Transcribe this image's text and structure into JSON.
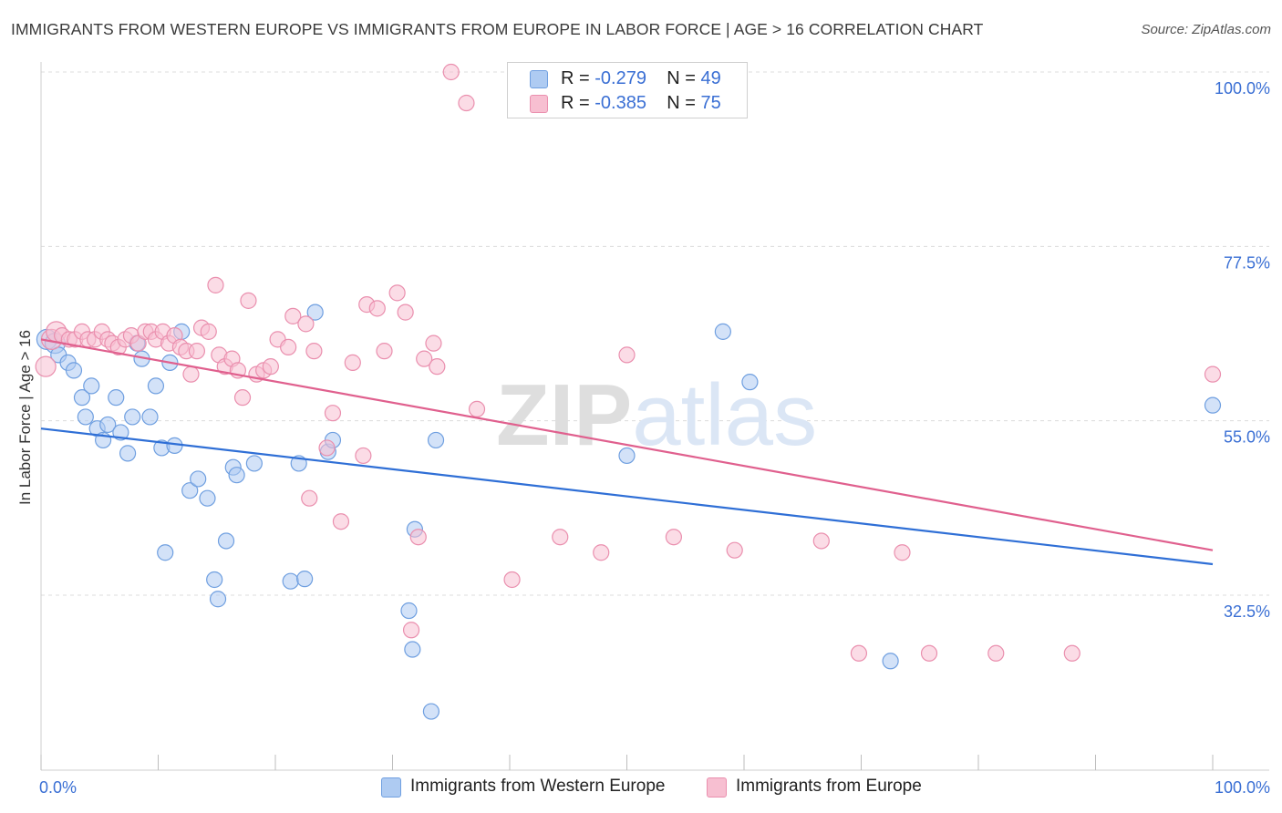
{
  "title": "IMMIGRANTS FROM WESTERN EUROPE VS IMMIGRANTS FROM EUROPE IN LABOR FORCE | AGE > 16 CORRELATION CHART",
  "source": "Source: ZipAtlas.com",
  "watermark": "ZIPatlas",
  "colors": {
    "blue_fill": "#aecbf2",
    "blue_stroke": "#6f9fe0",
    "blue_line": "#2f6fd6",
    "pink_fill": "#f7bfd1",
    "pink_stroke": "#ea8fae",
    "pink_line": "#e0608e",
    "axis_text": "#3a6fd4",
    "grid": "#dcdcdc"
  },
  "legend": {
    "blue": {
      "r_label": "R =",
      "r_value": "-0.279",
      "n_label": "N =",
      "n_value": "49"
    },
    "pink": {
      "r_label": "R =",
      "r_value": "-0.385",
      "n_label": "N =",
      "n_value": "75"
    }
  },
  "chart_data": {
    "type": "scatter",
    "title": "IMMIGRANTS FROM WESTERN EUROPE VS IMMIGRANTS FROM EUROPE IN LABOR FORCE | AGE > 16 CORRELATION CHART",
    "xlabel": "",
    "ylabel": "In Labor Force | Age > 16",
    "xlim": [
      0,
      100
    ],
    "ylim": [
      16,
      103
    ],
    "x_tick_labels": [
      "0.0%",
      "100.0%"
    ],
    "y_ticks": [
      32.5,
      55.0,
      77.5,
      100.0
    ],
    "y_tick_labels": [
      "32.5%",
      "55.0%",
      "77.5%",
      "100.0%"
    ],
    "grid": "horizontal dashed",
    "legend_position": "bottom",
    "series": [
      {
        "name": "Immigrants from Western Europe",
        "color": "#aecbf2",
        "trend": {
          "x": [
            0,
            100
          ],
          "y": [
            54.0,
            36.5
          ]
        },
        "points": [
          [
            0.5,
            65.5
          ],
          [
            1.2,
            65.0
          ],
          [
            1.5,
            63.5
          ],
          [
            2.3,
            62.5
          ],
          [
            2.8,
            61.5
          ],
          [
            3.5,
            58.0
          ],
          [
            3.8,
            55.5
          ],
          [
            4.3,
            59.5
          ],
          [
            4.8,
            54.0
          ],
          [
            5.3,
            52.5
          ],
          [
            5.7,
            54.5
          ],
          [
            6.4,
            58.0
          ],
          [
            6.8,
            53.5
          ],
          [
            7.4,
            50.8
          ],
          [
            7.8,
            55.5
          ],
          [
            8.2,
            65.0
          ],
          [
            8.6,
            63.0
          ],
          [
            9.3,
            55.5
          ],
          [
            9.8,
            59.5
          ],
          [
            10.3,
            51.5
          ],
          [
            10.6,
            38.0
          ],
          [
            11.0,
            62.5
          ],
          [
            11.4,
            51.8
          ],
          [
            12.0,
            66.5
          ],
          [
            12.7,
            46.0
          ],
          [
            13.4,
            47.5
          ],
          [
            14.2,
            45.0
          ],
          [
            14.8,
            34.5
          ],
          [
            15.1,
            32.0
          ],
          [
            15.8,
            39.5
          ],
          [
            16.4,
            49.0
          ],
          [
            16.7,
            48.0
          ],
          [
            18.2,
            49.5
          ],
          [
            21.3,
            34.3
          ],
          [
            22.0,
            49.5
          ],
          [
            22.5,
            34.6
          ],
          [
            23.4,
            69.0
          ],
          [
            24.5,
            51.0
          ],
          [
            24.9,
            52.5
          ],
          [
            31.4,
            30.5
          ],
          [
            31.7,
            25.5
          ],
          [
            31.9,
            41.0
          ],
          [
            33.3,
            17.5
          ],
          [
            33.7,
            52.5
          ],
          [
            50.0,
            50.5
          ],
          [
            58.2,
            66.5
          ],
          [
            60.5,
            60.0
          ],
          [
            72.5,
            24.0
          ],
          [
            100.0,
            57.0
          ]
        ]
      },
      {
        "name": "Immigrants from Europe",
        "color": "#f7bfd1",
        "trend": {
          "x": [
            0,
            100
          ],
          "y": [
            65.5,
            38.3
          ]
        },
        "points": [
          [
            0.4,
            62.0
          ],
          [
            0.9,
            65.5
          ],
          [
            1.3,
            66.5
          ],
          [
            1.8,
            66.0
          ],
          [
            2.4,
            65.5
          ],
          [
            2.9,
            65.5
          ],
          [
            3.5,
            66.5
          ],
          [
            4.0,
            65.5
          ],
          [
            4.6,
            65.5
          ],
          [
            5.2,
            66.5
          ],
          [
            5.7,
            65.5
          ],
          [
            6.1,
            65.0
          ],
          [
            6.6,
            64.5
          ],
          [
            7.2,
            65.5
          ],
          [
            7.7,
            66.0
          ],
          [
            8.3,
            65.0
          ],
          [
            8.9,
            66.5
          ],
          [
            9.4,
            66.5
          ],
          [
            9.8,
            65.5
          ],
          [
            10.4,
            66.5
          ],
          [
            10.9,
            65.0
          ],
          [
            11.4,
            66.0
          ],
          [
            11.9,
            64.5
          ],
          [
            12.4,
            64.0
          ],
          [
            12.8,
            61.0
          ],
          [
            13.3,
            64.0
          ],
          [
            13.7,
            67.0
          ],
          [
            14.3,
            66.5
          ],
          [
            14.9,
            72.5
          ],
          [
            15.2,
            63.5
          ],
          [
            15.7,
            62.0
          ],
          [
            16.3,
            63.0
          ],
          [
            16.8,
            61.5
          ],
          [
            17.2,
            58.0
          ],
          [
            17.7,
            70.5
          ],
          [
            18.4,
            61.0
          ],
          [
            19.0,
            61.5
          ],
          [
            19.6,
            62.0
          ],
          [
            20.2,
            65.5
          ],
          [
            21.1,
            64.5
          ],
          [
            21.5,
            68.5
          ],
          [
            22.6,
            67.5
          ],
          [
            22.9,
            45.0
          ],
          [
            23.3,
            64.0
          ],
          [
            24.4,
            51.5
          ],
          [
            24.9,
            56.0
          ],
          [
            25.6,
            42.0
          ],
          [
            26.6,
            62.5
          ],
          [
            27.5,
            50.5
          ],
          [
            27.8,
            70.0
          ],
          [
            28.7,
            69.5
          ],
          [
            29.3,
            64.0
          ],
          [
            30.4,
            71.5
          ],
          [
            31.1,
            69.0
          ],
          [
            31.6,
            28.0
          ],
          [
            32.2,
            40.0
          ],
          [
            32.7,
            63.0
          ],
          [
            33.5,
            65.0
          ],
          [
            33.8,
            62.0
          ],
          [
            35.0,
            100.0
          ],
          [
            36.3,
            96.0
          ],
          [
            37.2,
            56.5
          ],
          [
            40.2,
            34.5
          ],
          [
            44.3,
            40.0
          ],
          [
            47.8,
            38.0
          ],
          [
            50.0,
            63.5
          ],
          [
            54.0,
            40.0
          ],
          [
            59.2,
            38.3
          ],
          [
            66.6,
            39.5
          ],
          [
            69.8,
            25.0
          ],
          [
            73.5,
            38.0
          ],
          [
            75.8,
            25.0
          ],
          [
            81.5,
            25.0
          ],
          [
            88.0,
            25.0
          ],
          [
            100.0,
            61.0
          ]
        ]
      }
    ]
  }
}
